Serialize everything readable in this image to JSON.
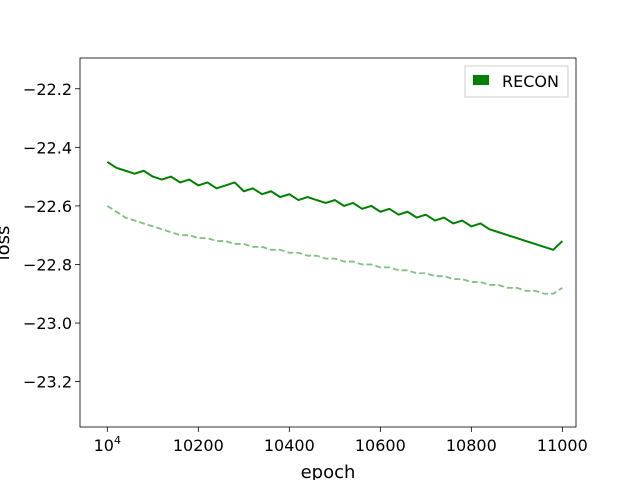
{
  "chart_data": {
    "type": "line",
    "title": "",
    "xlabel": "epoch",
    "ylabel": "loss",
    "xlim": [
      9940,
      11030
    ],
    "ylim": [
      -23.355,
      -22.095
    ],
    "xticks": [
      {
        "value": 10000,
        "label": "10",
        "sup": "4"
      },
      {
        "value": 10200,
        "label": "10200"
      },
      {
        "value": 10400,
        "label": "10400"
      },
      {
        "value": 10600,
        "label": "10600"
      },
      {
        "value": 10800,
        "label": "10800"
      },
      {
        "value": 11000,
        "label": "11000"
      }
    ],
    "yticks": [
      {
        "value": -22.2,
        "label": "−22.2"
      },
      {
        "value": -22.4,
        "label": "−22.4"
      },
      {
        "value": -22.6,
        "label": "−22.6"
      },
      {
        "value": -22.8,
        "label": "−22.8"
      },
      {
        "value": -23.0,
        "label": "−23.0"
      },
      {
        "value": -23.2,
        "label": "−23.2"
      }
    ],
    "grid": false,
    "legend": {
      "position": "top-right",
      "entries": [
        "RECON"
      ]
    },
    "series": [
      {
        "name": "RECON",
        "style": "solid",
        "color": "#008000",
        "x": [
          10000,
          10020,
          10040,
          10060,
          10080,
          10100,
          10120,
          10140,
          10160,
          10180,
          10200,
          10220,
          10240,
          10260,
          10280,
          10300,
          10320,
          10340,
          10360,
          10380,
          10400,
          10420,
          10440,
          10460,
          10480,
          10500,
          10520,
          10540,
          10560,
          10580,
          10600,
          10620,
          10640,
          10660,
          10680,
          10700,
          10720,
          10740,
          10760,
          10780,
          10800,
          10820,
          10840,
          10860,
          10880,
          10900,
          10920,
          10940,
          10960,
          10980,
          11000
        ],
        "values": [
          -22.45,
          -22.47,
          -22.48,
          -22.49,
          -22.48,
          -22.5,
          -22.51,
          -22.5,
          -22.52,
          -22.51,
          -22.53,
          -22.52,
          -22.54,
          -22.53,
          -22.52,
          -22.55,
          -22.54,
          -22.56,
          -22.55,
          -22.57,
          -22.56,
          -22.58,
          -22.57,
          -22.58,
          -22.59,
          -22.58,
          -22.6,
          -22.59,
          -22.61,
          -22.6,
          -22.62,
          -22.61,
          -22.63,
          -22.62,
          -22.64,
          -22.63,
          -22.65,
          -22.64,
          -22.66,
          -22.65,
          -22.67,
          -22.66,
          -22.68,
          -22.69,
          -22.7,
          -22.71,
          -22.72,
          -22.73,
          -22.74,
          -22.75,
          -22.72
        ]
      },
      {
        "name": "",
        "style": "dashed",
        "color": "#7fc17f",
        "x": [
          10000,
          10020,
          10040,
          10060,
          10080,
          10100,
          10120,
          10140,
          10160,
          10180,
          10200,
          10220,
          10240,
          10260,
          10280,
          10300,
          10320,
          10340,
          10360,
          10380,
          10400,
          10420,
          10440,
          10460,
          10480,
          10500,
          10520,
          10540,
          10560,
          10580,
          10600,
          10620,
          10640,
          10660,
          10680,
          10700,
          10720,
          10740,
          10760,
          10780,
          10800,
          10820,
          10840,
          10860,
          10880,
          10900,
          10920,
          10940,
          10960,
          10980,
          11000
        ],
        "values": [
          -22.6,
          -22.62,
          -22.64,
          -22.65,
          -22.66,
          -22.67,
          -22.68,
          -22.69,
          -22.7,
          -22.7,
          -22.71,
          -22.71,
          -22.72,
          -22.72,
          -22.73,
          -22.73,
          -22.74,
          -22.74,
          -22.75,
          -22.75,
          -22.76,
          -22.76,
          -22.77,
          -22.77,
          -22.78,
          -22.78,
          -22.79,
          -22.79,
          -22.8,
          -22.8,
          -22.81,
          -22.81,
          -22.82,
          -22.82,
          -22.83,
          -22.83,
          -22.84,
          -22.84,
          -22.85,
          -22.85,
          -22.86,
          -22.86,
          -22.87,
          -22.87,
          -22.88,
          -22.88,
          -22.89,
          -22.89,
          -22.9,
          -22.9,
          -22.88
        ]
      }
    ]
  }
}
